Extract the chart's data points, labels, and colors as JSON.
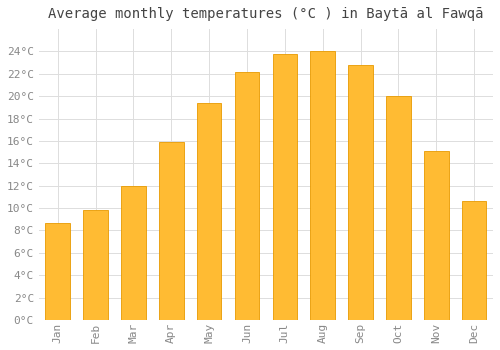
{
  "title": "Average monthly temperatures (°C ) in Baytā al Fawqā",
  "months": [
    "Jan",
    "Feb",
    "Mar",
    "Apr",
    "May",
    "Jun",
    "Jul",
    "Aug",
    "Sep",
    "Oct",
    "Nov",
    "Dec"
  ],
  "values": [
    8.7,
    9.8,
    12.0,
    15.9,
    19.4,
    22.2,
    23.8,
    24.0,
    22.8,
    20.0,
    15.1,
    10.6
  ],
  "bar_color": "#FFBB33",
  "bar_edge_color": "#E89A00",
  "background_color": "#FFFFFF",
  "grid_color": "#DDDDDD",
  "ylim": [
    0,
    26
  ],
  "yticks": [
    0,
    2,
    4,
    6,
    8,
    10,
    12,
    14,
    16,
    18,
    20,
    22,
    24
  ],
  "title_fontsize": 10,
  "tick_fontsize": 8,
  "tick_color": "#888888",
  "title_color": "#444444",
  "bar_width": 0.65
}
